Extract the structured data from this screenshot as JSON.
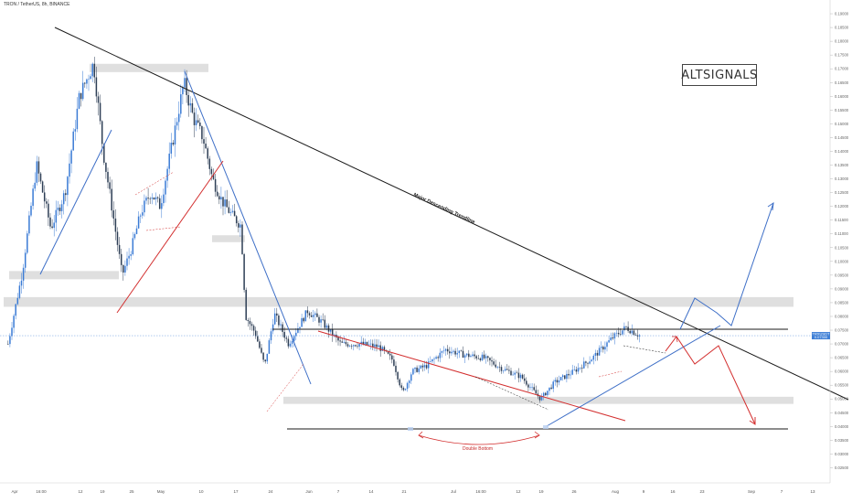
{
  "header": {
    "title": "TRON / TetherUS, 8h, BINANCE"
  },
  "logo": {
    "text": "ALTSIGNALS"
  },
  "colors": {
    "up": "#3a7bd5",
    "down": "#2d3e55",
    "trend": "#1a1a1a",
    "red": "#d32f2f",
    "blue": "#3e6fc7",
    "zone": "#d9d9d9"
  },
  "price_label": {
    "value": "0.07300",
    "sub": "TRXUSDT"
  },
  "chart_data": {
    "type": "candlestick",
    "symbol": "TRON / TetherUS",
    "timeframe": "8h",
    "exchange": "BINANCE",
    "ylim": [
      0.0195,
      0.195
    ],
    "y_ticks": [
      "0.19000",
      "0.18500",
      "0.18000",
      "0.17500",
      "0.17000",
      "0.16500",
      "0.16000",
      "0.15500",
      "0.15000",
      "0.14500",
      "0.14000",
      "0.13500",
      "0.13000",
      "0.12500",
      "0.12000",
      "0.11500",
      "0.11000",
      "0.10500",
      "0.10000",
      "0.09500",
      "0.09000",
      "0.08500",
      "0.08000",
      "0.07500",
      "0.07000",
      "0.06500",
      "0.06000",
      "0.05500",
      "0.05000",
      "0.04500",
      "0.04000",
      "0.03500",
      "0.03000",
      "0.02500",
      "0.02000"
    ],
    "x_ticks": [
      "Apr",
      "16:00",
      "12",
      "19",
      "25",
      "May",
      "10",
      "17",
      "24",
      "Jun",
      "7",
      "14",
      "21",
      "Jul",
      "16:00",
      "12",
      "19",
      "26",
      "Aug",
      "9",
      "16",
      "23",
      "Sep",
      "7",
      "13"
    ],
    "close_path": [
      {
        "x": "2021-03-30",
        "close": 0.07
      },
      {
        "x": "2021-04-02",
        "close": 0.096
      },
      {
        "x": "2021-04-05",
        "close": 0.135
      },
      {
        "x": "2021-04-08",
        "close": 0.112
      },
      {
        "x": "2021-04-11",
        "close": 0.125
      },
      {
        "x": "2021-04-14",
        "close": 0.16
      },
      {
        "x": "2021-04-17",
        "close": 0.172
      },
      {
        "x": "2021-04-19",
        "close": 0.14
      },
      {
        "x": "2021-04-21",
        "close": 0.118
      },
      {
        "x": "2021-04-23",
        "close": 0.095
      },
      {
        "x": "2021-04-25",
        "close": 0.105
      },
      {
        "x": "2021-04-27",
        "close": 0.118
      },
      {
        "x": "2021-04-29",
        "close": 0.125
      },
      {
        "x": "2021-05-01",
        "close": 0.12
      },
      {
        "x": "2021-05-03",
        "close": 0.138
      },
      {
        "x": "2021-05-06",
        "close": 0.165
      },
      {
        "x": "2021-05-08",
        "close": 0.152
      },
      {
        "x": "2021-05-10",
        "close": 0.145
      },
      {
        "x": "2021-05-12",
        "close": 0.13
      },
      {
        "x": "2021-05-14",
        "close": 0.122
      },
      {
        "x": "2021-05-16",
        "close": 0.117
      },
      {
        "x": "2021-05-18",
        "close": 0.113
      },
      {
        "x": "2021-05-19",
        "close": 0.08
      },
      {
        "x": "2021-05-21",
        "close": 0.074
      },
      {
        "x": "2021-05-23",
        "close": 0.062
      },
      {
        "x": "2021-05-25",
        "close": 0.081
      },
      {
        "x": "2021-05-28",
        "close": 0.07
      },
      {
        "x": "2021-06-01",
        "close": 0.082
      },
      {
        "x": "2021-06-04",
        "close": 0.078
      },
      {
        "x": "2021-06-08",
        "close": 0.07
      },
      {
        "x": "2021-06-12",
        "close": 0.07
      },
      {
        "x": "2021-06-16",
        "close": 0.069
      },
      {
        "x": "2021-06-19",
        "close": 0.064
      },
      {
        "x": "2021-06-21",
        "close": 0.052
      },
      {
        "x": "2021-06-23",
        "close": 0.06
      },
      {
        "x": "2021-06-26",
        "close": 0.062
      },
      {
        "x": "2021-06-30",
        "close": 0.068
      },
      {
        "x": "2021-07-04",
        "close": 0.066
      },
      {
        "x": "2021-07-08",
        "close": 0.065
      },
      {
        "x": "2021-07-12",
        "close": 0.061
      },
      {
        "x": "2021-07-16",
        "close": 0.058
      },
      {
        "x": "2021-07-20",
        "close": 0.05
      },
      {
        "x": "2021-07-23",
        "close": 0.056
      },
      {
        "x": "2021-07-27",
        "close": 0.06
      },
      {
        "x": "2021-07-31",
        "close": 0.065
      },
      {
        "x": "2021-08-04",
        "close": 0.072
      },
      {
        "x": "2021-08-07",
        "close": 0.076
      },
      {
        "x": "2021-08-10",
        "close": 0.073
      }
    ],
    "annotations": [
      {
        "label": "Major Descending Trendline"
      },
      {
        "label": "Double Bottom"
      }
    ]
  }
}
